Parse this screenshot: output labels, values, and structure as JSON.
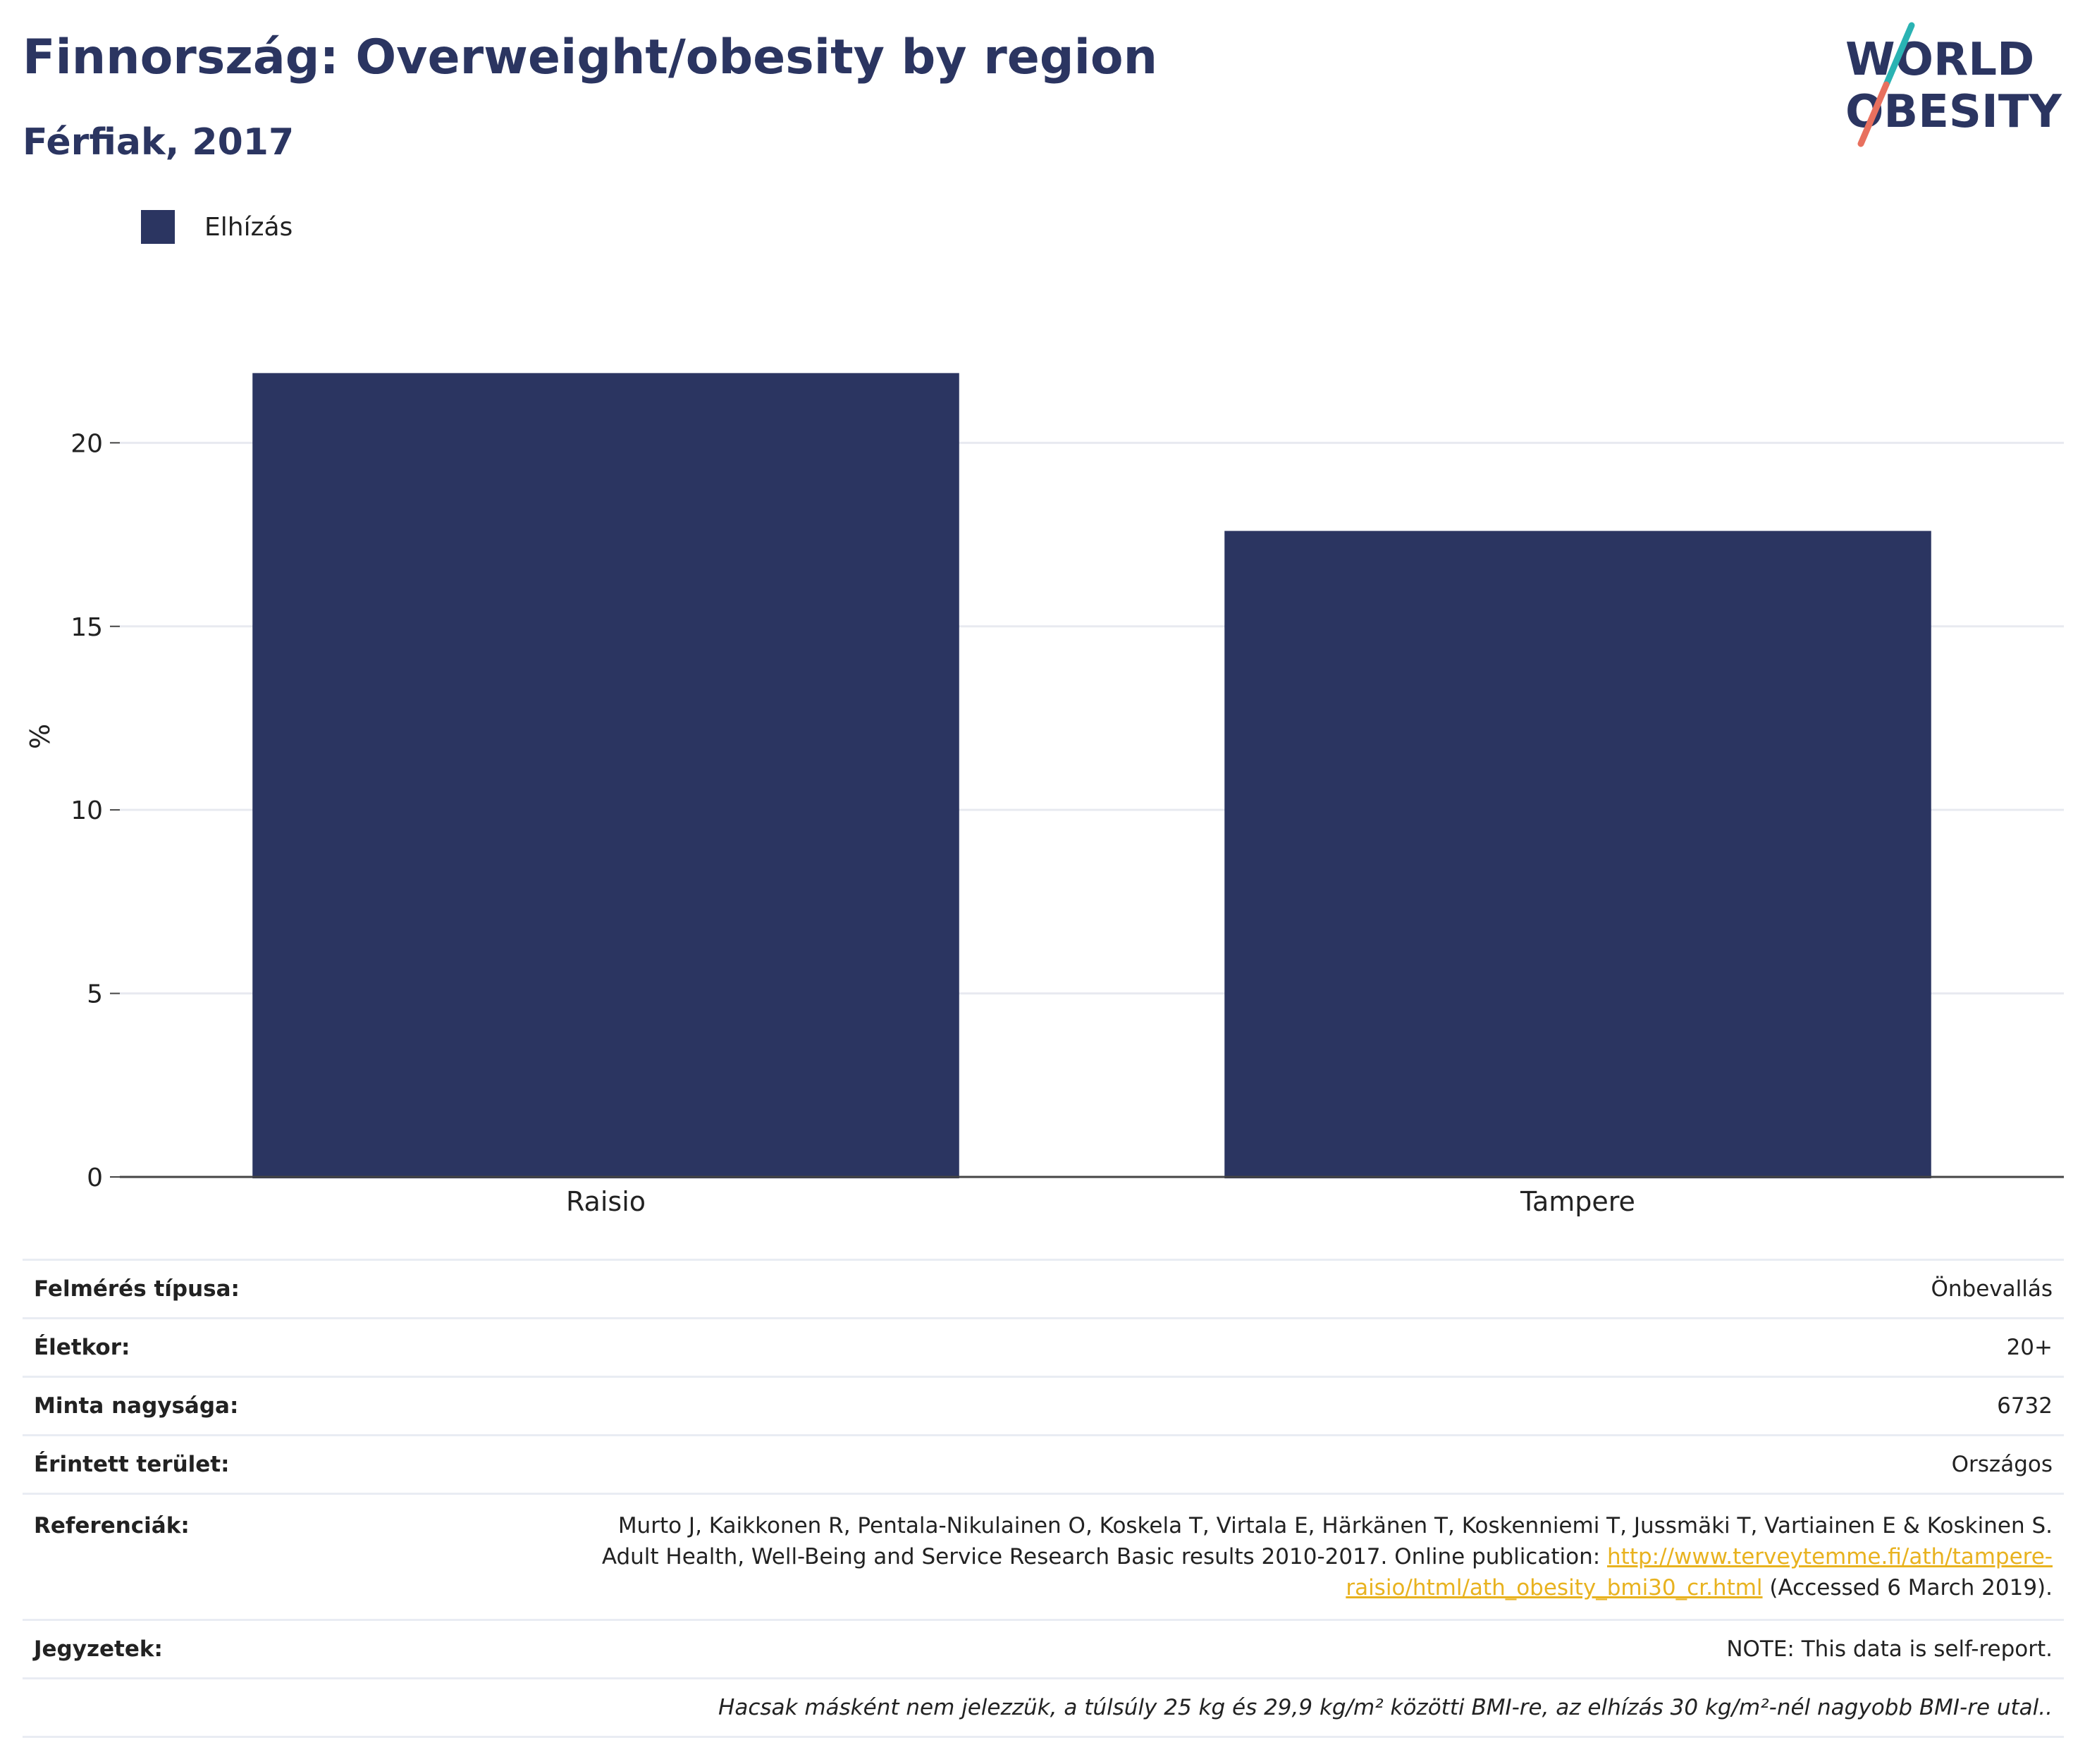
{
  "header": {
    "title": "Finnország: Overweight/obesity by region",
    "subtitle": "Férfiak, 2017"
  },
  "logo": {
    "line1": "WORLD",
    "line2": "OBESITY",
    "colors": {
      "text": "#2b3561",
      "slash_top": "#2ab3b3",
      "slash_bottom": "#e8705e"
    }
  },
  "legend": {
    "label": "Elhízás",
    "color": "#2b3561"
  },
  "chart_data": {
    "type": "bar",
    "categories": [
      "Raisio",
      "Tampere"
    ],
    "series": [
      {
        "name": "Elhízás",
        "values": [
          21.9,
          17.6
        ],
        "color": "#2b3561"
      }
    ],
    "ylabel": "%",
    "xlabel": "",
    "ylim": [
      0,
      24
    ],
    "yticks": [
      0,
      5,
      10,
      15,
      20
    ],
    "grid": true,
    "legend_position": "top-left"
  },
  "meta": {
    "survey_type_label": "Felmérés típusa:",
    "survey_type_value": "Önbevallás",
    "age_label": "Életkor:",
    "age_value": "20+",
    "sample_label": "Minta nagysága:",
    "sample_value": "6732",
    "area_label": "Érintett terület:",
    "area_value": "Országos",
    "ref_label": "Referenciák:",
    "ref_line1": "Murto J, Kaikkonen R, Pentala-Nikulainen O, Koskela T, Virtala E, Härkänen T, Koskenniemi T, Jussmäki T, Vartiainen E & Koskinen S.",
    "ref_line2_prefix": "Adult Health, Well-Being and Service Research Basic results 2010-2017. Online publication: ",
    "ref_link_part1": "http://www.terveytemme.fi/ath/tampere-",
    "ref_link_part2": "raisio/html/ath_obesity_bmi30_cr.html",
    "ref_suffix": " (Accessed 6 March 2019).",
    "notes_label": "Jegyzetek:",
    "notes_value": "NOTE: This data is self-report.",
    "footnote": "Hacsak másként nem jelezzük, a túlsúly 25 kg és 29,9 kg/m² közötti BMI-re, az elhízás 30 kg/m²-nél nagyobb BMI-re utal.."
  }
}
